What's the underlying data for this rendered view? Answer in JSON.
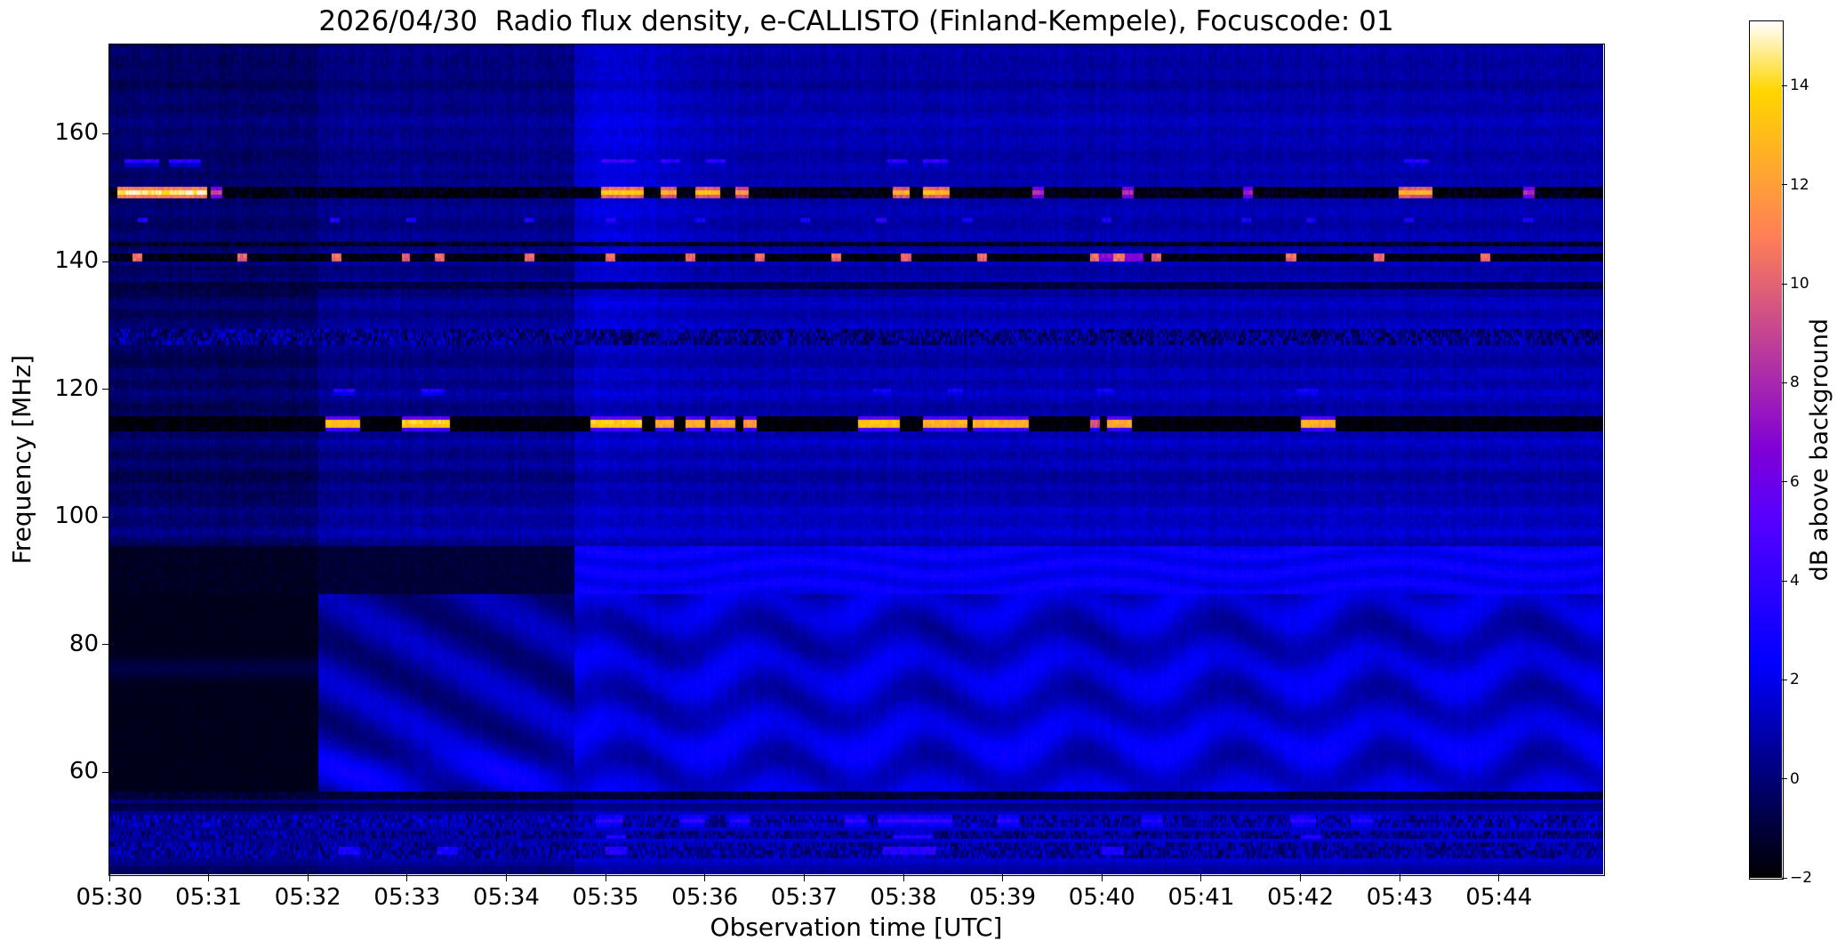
{
  "chart_data": {
    "type": "heatmap",
    "title": "2026/04/30  Radio flux density, e-CALLISTO (Finland-Kempele), Focuscode: 01",
    "xlabel": "Observation time [UTC]",
    "ylabel": "Frequency [MHz]",
    "colorbar_label": "dB above background",
    "colormap": "gnuplot2",
    "clim": [
      -2,
      15.3
    ],
    "colorbar_tick_values": [
      14,
      12,
      10,
      8,
      6,
      4,
      2,
      0,
      -2
    ],
    "colorbar_tick_labels": [
      "14",
      "12",
      "10",
      "8",
      "6",
      "4",
      "2",
      "0",
      "−2"
    ],
    "time_tick_labels": [
      "05:30",
      "05:31",
      "05:32",
      "05:33",
      "05:34",
      "05:35",
      "05:36",
      "05:37",
      "05:38",
      "05:39",
      "05:40",
      "05:41",
      "05:42",
      "05:43",
      "05:44"
    ],
    "time_span_minutes": 15.05,
    "freq_tick_values": [
      160,
      140,
      120,
      100,
      80,
      60
    ],
    "freq_tick_labels": [
      "160",
      "140",
      "120",
      "100",
      "80",
      "60"
    ],
    "freq_range_mhz": [
      44,
      174
    ],
    "background_segments": [
      {
        "t_start": 0,
        "t_end": 2.11,
        "pattern": "flat",
        "upper_db": -0.15,
        "lane_db": -1.4,
        "low_db": -1.55,
        "bottom_db": 0.45
      },
      {
        "t_start": 2.11,
        "t_end": 4.69,
        "pattern": "diagonal",
        "upper_db": 0.35,
        "lane_db": -1.05,
        "low_db": 0.45,
        "bottom_db": 0.85
      },
      {
        "t_start": 4.69,
        "t_end": 15.05,
        "pattern": "wavy",
        "upper_db": 0.95,
        "lane_db": 2.3,
        "low_db": 1.35,
        "bottom_db": 1.5
      }
    ],
    "rfi_lines": [
      {
        "name": "155.6 MHz dashes",
        "freq": 155.6,
        "halfwidth": 0.55,
        "base_db": null,
        "noise_db": 0.4,
        "bursts": [
          [
            0.15,
            0.5,
            4.2
          ],
          [
            0.6,
            0.92,
            4.0
          ],
          [
            4.95,
            5.3,
            4.5
          ],
          [
            5.55,
            5.75,
            4.0
          ],
          [
            6.0,
            6.2,
            3.8
          ],
          [
            7.85,
            8.05,
            4.0
          ],
          [
            8.2,
            8.45,
            4.2
          ],
          [
            13.05,
            13.3,
            3.8
          ]
        ]
      },
      {
        "name": "150.8 MHz carrier",
        "freq": 150.8,
        "halfwidth": 1.15,
        "base_db": -1.8,
        "noise_db": 1.1,
        "bursts": [
          [
            0.08,
            0.98,
            14.6
          ],
          [
            1.02,
            1.14,
            9.0
          ],
          [
            4.95,
            5.38,
            13.6
          ],
          [
            5.55,
            5.72,
            12.6
          ],
          [
            5.9,
            6.16,
            13.2
          ],
          [
            6.3,
            6.44,
            12.0
          ],
          [
            7.9,
            8.06,
            12.6
          ],
          [
            8.2,
            8.46,
            13.0
          ],
          [
            9.3,
            9.42,
            8.0
          ],
          [
            10.2,
            10.32,
            8.4
          ],
          [
            11.42,
            11.52,
            7.8
          ],
          [
            13.0,
            13.32,
            12.8
          ],
          [
            14.25,
            14.36,
            8.2
          ]
        ]
      },
      {
        "name": "146.5 MHz dots",
        "freq": 146.5,
        "halfwidth": 0.4,
        "base_db": null,
        "noise_db": 0.3,
        "bursts": [
          [
            0.28,
            0.38,
            3.4
          ],
          [
            2.22,
            2.32,
            3.3
          ],
          [
            3.0,
            3.1,
            3.2
          ],
          [
            4.18,
            4.28,
            3.3
          ],
          [
            5.0,
            5.1,
            3.4
          ],
          [
            5.9,
            6.0,
            3.3
          ],
          [
            6.95,
            7.05,
            3.2
          ],
          [
            7.72,
            7.82,
            3.4
          ],
          [
            8.6,
            8.7,
            3.3
          ],
          [
            10.0,
            10.1,
            3.4
          ],
          [
            11.4,
            11.5,
            3.2
          ],
          [
            12.05,
            12.15,
            3.3
          ],
          [
            13.05,
            13.15,
            3.3
          ],
          [
            14.25,
            14.35,
            3.2
          ]
        ]
      },
      {
        "name": "142.8 MHz dark line",
        "freq": 142.8,
        "halfwidth": 0.5,
        "base_db": -1.3,
        "noise_db": 0.7,
        "bursts": []
      },
      {
        "name": "140.6 MHz beacon",
        "freq": 140.6,
        "halfwidth": 0.85,
        "base_db": -1.75,
        "noise_db": 0.8,
        "bursts": [
          [
            0.24,
            0.34,
            11.8
          ],
          [
            1.28,
            1.38,
            11.4
          ],
          [
            2.24,
            2.34,
            11.6
          ],
          [
            2.94,
            3.03,
            11.2
          ],
          [
            3.28,
            3.38,
            11.6
          ],
          [
            4.18,
            4.28,
            11.4
          ],
          [
            5.0,
            5.1,
            11.8
          ],
          [
            5.8,
            5.9,
            11.4
          ],
          [
            6.5,
            6.6,
            11.6
          ],
          [
            7.28,
            7.38,
            11.4
          ],
          [
            7.98,
            8.08,
            11.6
          ],
          [
            8.74,
            8.84,
            11.4
          ],
          [
            9.88,
            9.97,
            11.8
          ],
          [
            9.97,
            10.42,
            7.6
          ],
          [
            10.12,
            10.24,
            11.9
          ],
          [
            10.5,
            10.6,
            11.2
          ],
          [
            11.86,
            11.96,
            11.6
          ],
          [
            12.74,
            12.84,
            11.4
          ],
          [
            13.82,
            13.92,
            11.8
          ]
        ]
      },
      {
        "name": "136.2 MHz faint line",
        "freq": 136.2,
        "halfwidth": 0.35,
        "base_db": -0.9,
        "noise_db": 0.5,
        "bursts": []
      },
      {
        "name": "128.2 MHz noise band",
        "freq": 128.2,
        "halfwidth": 1.2,
        "base_db": 0.3,
        "noise_db": 1.7,
        "bursts": []
      },
      {
        "name": "119.6 MHz dashes",
        "freq": 119.6,
        "halfwidth": 0.5,
        "base_db": null,
        "noise_db": 0.3,
        "bursts": [
          [
            2.25,
            2.48,
            4.3
          ],
          [
            3.15,
            3.38,
            4.2
          ],
          [
            7.7,
            7.88,
            3.9
          ],
          [
            8.45,
            8.62,
            3.9
          ],
          [
            9.95,
            10.12,
            3.7
          ],
          [
            11.95,
            12.18,
            3.9
          ]
        ]
      },
      {
        "name": "114.6 MHz carrier",
        "freq": 114.6,
        "halfwidth": 1.05,
        "base_db": -1.9,
        "noise_db": 0.6,
        "bursts": [
          [
            2.18,
            2.52,
            14.2
          ],
          [
            2.95,
            3.42,
            14.6
          ],
          [
            4.85,
            5.36,
            14.6
          ],
          [
            5.5,
            5.68,
            13.4
          ],
          [
            5.8,
            6.0,
            13.6
          ],
          [
            6.06,
            6.3,
            13.0
          ],
          [
            6.38,
            6.52,
            12.6
          ],
          [
            7.55,
            7.96,
            14.2
          ],
          [
            8.2,
            8.64,
            13.6
          ],
          [
            8.7,
            9.26,
            13.6
          ],
          [
            9.88,
            9.98,
            10.0
          ],
          [
            10.05,
            10.3,
            13.2
          ],
          [
            12.0,
            12.36,
            13.6
          ]
        ]
      },
      {
        "name": "56.3 MHz dark line",
        "freq": 56.3,
        "halfwidth": 0.45,
        "base_db": -1.0,
        "noise_db": 0.5,
        "bursts": []
      },
      {
        "name": "52.4 MHz noise band",
        "freq": 52.4,
        "halfwidth": 0.95,
        "base_db": 0.8,
        "noise_db": 1.5,
        "bursts": [
          [
            4.9,
            5.16,
            4.1
          ],
          [
            5.75,
            6.0,
            4.0
          ],
          [
            6.25,
            6.46,
            3.8
          ],
          [
            7.4,
            7.62,
            4.0
          ],
          [
            7.75,
            8.5,
            4.2
          ],
          [
            8.95,
            9.16,
            3.8
          ],
          [
            10.4,
            10.62,
            3.6
          ],
          [
            11.9,
            12.16,
            4.0
          ],
          [
            12.5,
            12.72,
            3.6
          ]
        ]
      },
      {
        "name": "50.0 MHz noise band",
        "freq": 50.0,
        "halfwidth": 0.6,
        "base_db": 0.4,
        "noise_db": 1.3,
        "bursts": [
          [
            5.0,
            5.2,
            3.4
          ],
          [
            7.9,
            8.3,
            3.6
          ],
          [
            12.0,
            12.2,
            3.4
          ]
        ]
      },
      {
        "name": "47.7 MHz noise band",
        "freq": 47.7,
        "halfwidth": 0.95,
        "base_db": 0.6,
        "noise_db": 1.4,
        "bursts": [
          [
            2.3,
            2.52,
            3.5
          ],
          [
            3.3,
            3.52,
            3.5
          ],
          [
            5.0,
            5.22,
            3.8
          ],
          [
            7.8,
            8.32,
            4.0
          ],
          [
            10.0,
            10.22,
            3.5
          ]
        ]
      }
    ]
  }
}
